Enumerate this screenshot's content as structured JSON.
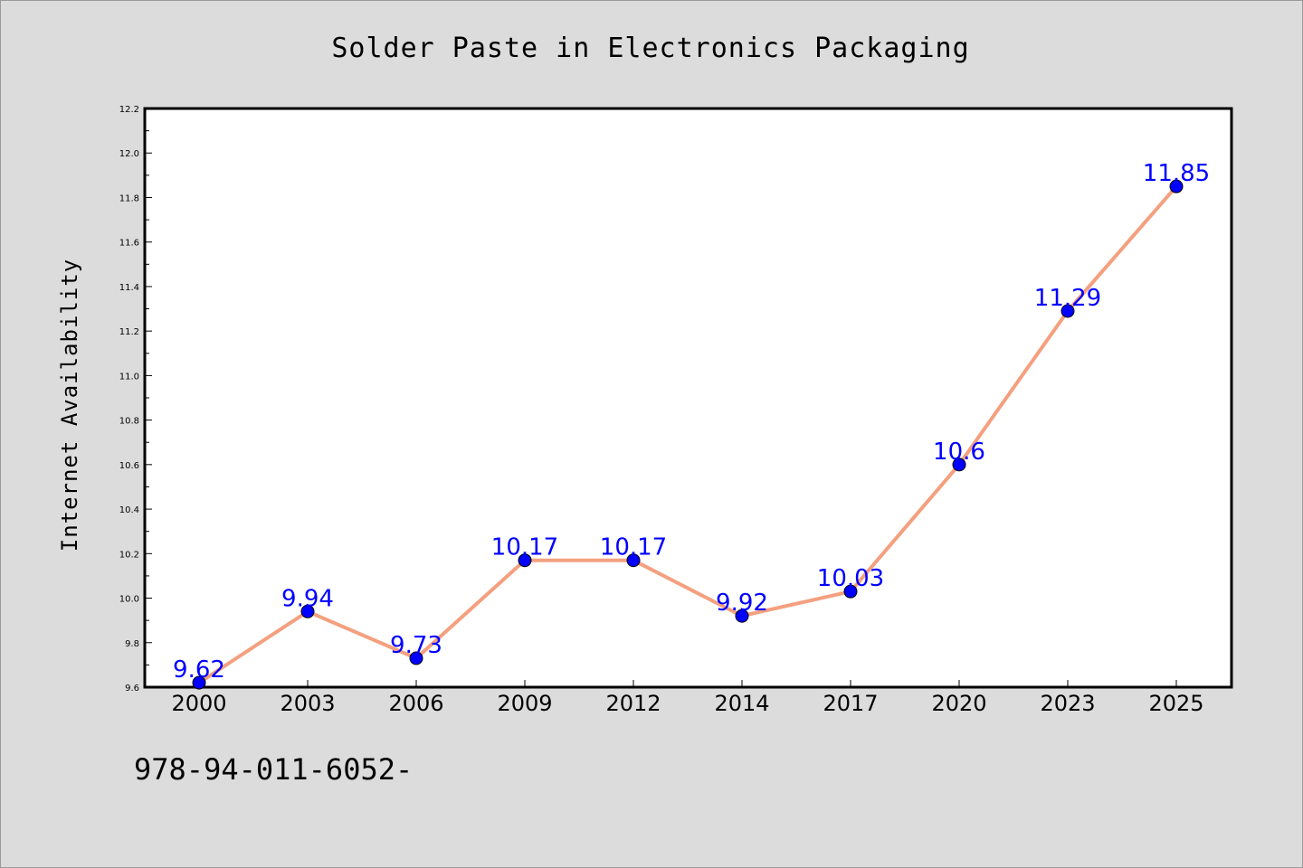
{
  "chart_data": {
    "type": "line",
    "title": "Solder Paste in Electronics Packaging",
    "xlabel": "",
    "ylabel": "Internet Availability",
    "categories": [
      "2000",
      "2003",
      "2006",
      "2009",
      "2012",
      "2014",
      "2017",
      "2020",
      "2023",
      "2025"
    ],
    "series": [
      {
        "values": [
          9.62,
          9.94,
          9.73,
          10.17,
          10.17,
          9.92,
          10.03,
          10.6,
          11.29,
          11.85
        ],
        "labels": [
          "9.62",
          "9.94",
          "9.73",
          "10.17",
          "10.17",
          "9.92",
          "10.03",
          "10.6",
          "11.29",
          "11.85"
        ]
      }
    ],
    "ylim": [
      9.6,
      12.2
    ],
    "yticks": [
      "9.6",
      "9.8",
      "10.0",
      "10.2",
      "10.4",
      "10.6",
      "10.8",
      "11.0",
      "11.2",
      "11.4",
      "11.6",
      "11.8",
      "12.0",
      "12.2"
    ],
    "line_color": "#f4a07f",
    "marker_color": "#0000ff",
    "label_color": "#0000ff",
    "grid": false,
    "legend": "none"
  },
  "footer": "978-94-011-6052-"
}
